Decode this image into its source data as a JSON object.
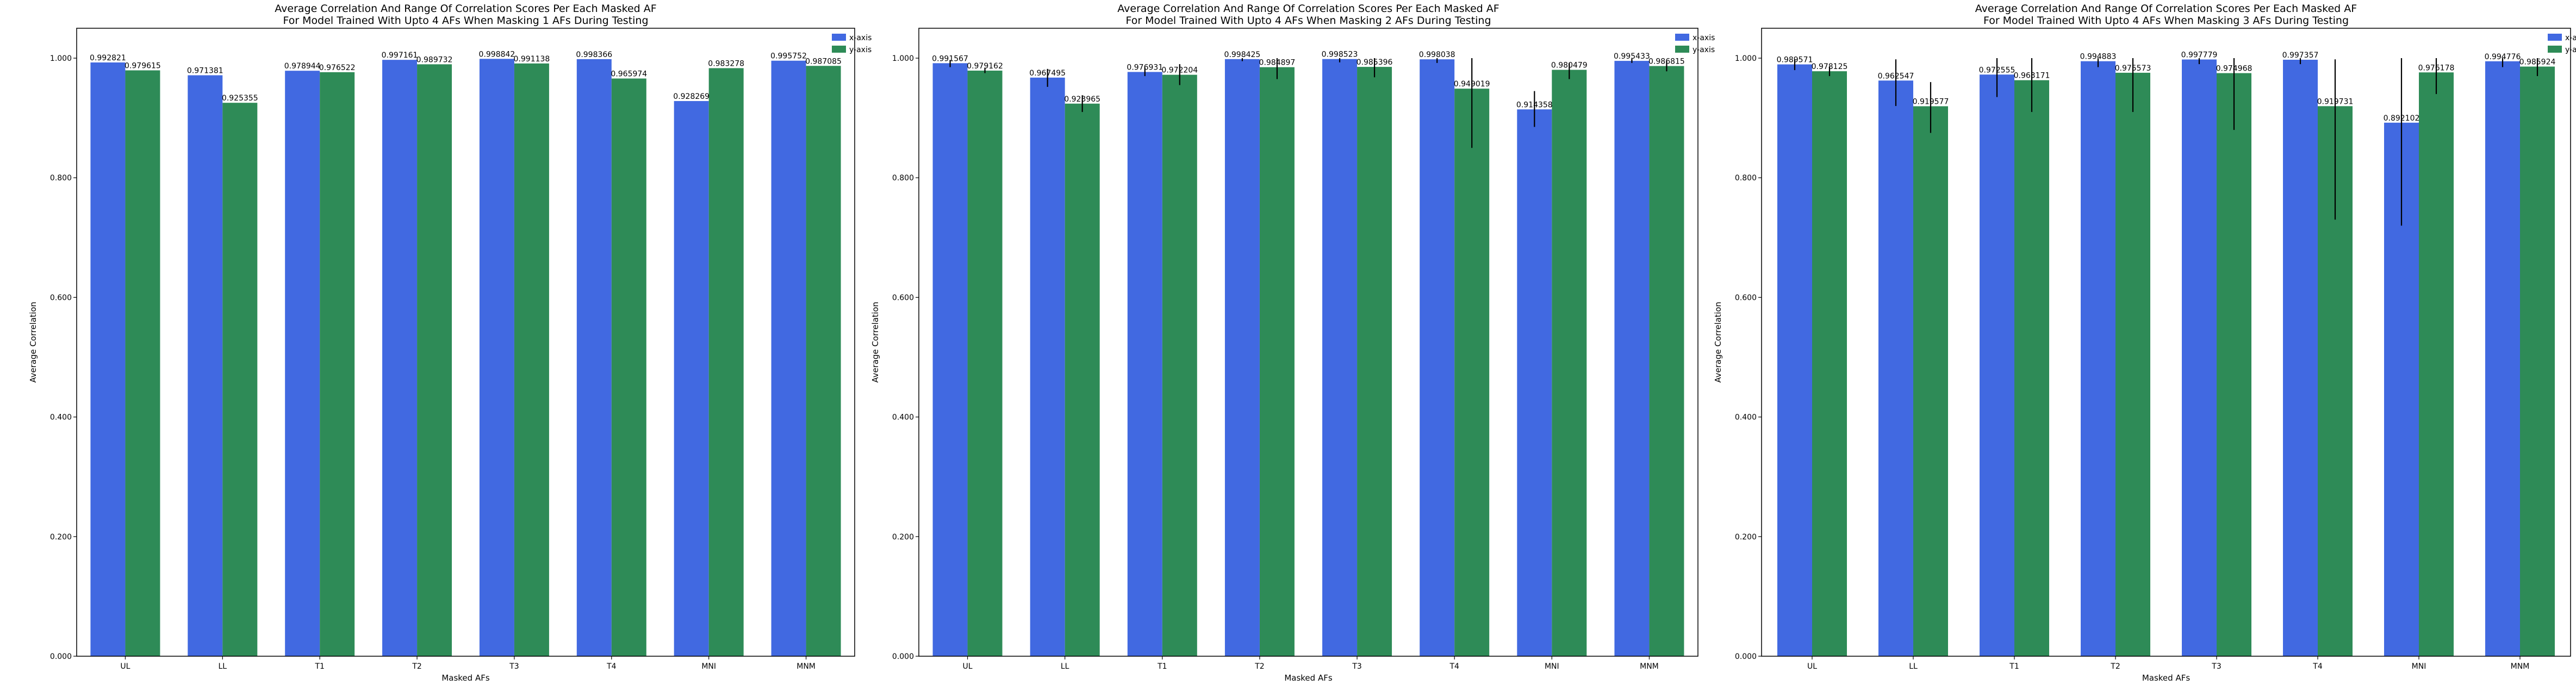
{
  "colors": {
    "x_axis": "#4169E1",
    "y_axis": "#2E8B57",
    "error_bar": "#000000"
  },
  "chart_data": [
    {
      "type": "bar",
      "title_line1": "Average Correlation And Range Of Correlation Scores Per Each Masked AF",
      "title_line2": "For Model Trained With Upto 4 AFs When Masking 1 AFs During Testing",
      "xlabel": "Masked AFs",
      "ylabel": "Average Correlation",
      "ylim": [
        0,
        1.05
      ],
      "yticks": [
        "0.000",
        "0.200",
        "0.400",
        "0.600",
        "0.800",
        "1.000"
      ],
      "categories": [
        "UL",
        "LL",
        "T1",
        "T2",
        "T3",
        "T4",
        "MNI",
        "MNM"
      ],
      "legend_position": "upper right",
      "grid": false,
      "series": [
        {
          "name": "x-axis",
          "values": [
            0.992821,
            0.971381,
            0.978944,
            0.997161,
            0.998842,
            0.998366,
            0.928269,
            0.995752
          ],
          "value_labels": [
            "0.992821",
            "0.971381",
            "0.978944",
            "0.997161",
            "0.998842",
            "0.998366",
            "0.928269",
            "0.995752"
          ],
          "error_ranges": [
            null,
            null,
            null,
            null,
            null,
            null,
            null,
            null
          ]
        },
        {
          "name": "y-axis",
          "values": [
            0.979615,
            0.925355,
            0.976522,
            0.989732,
            0.991138,
            0.965974,
            0.983278,
            0.987085
          ],
          "value_labels": [
            "0.979615",
            "0.925355",
            "0.976522",
            "0.989732",
            "0.991138",
            "0.965974",
            "0.983278",
            "0.987085"
          ],
          "error_ranges": [
            null,
            null,
            null,
            null,
            null,
            null,
            null,
            null
          ]
        }
      ]
    },
    {
      "type": "bar",
      "title_line1": "Average Correlation And Range Of Correlation Scores Per Each Masked AF",
      "title_line2": "For Model Trained With Upto 4 AFs When Masking 2 AFs During Testing",
      "xlabel": "Masked AFs",
      "ylabel": "Average Correlation",
      "ylim": [
        0,
        1.05
      ],
      "yticks": [
        "0.000",
        "0.200",
        "0.400",
        "0.600",
        "0.800",
        "1.000"
      ],
      "categories": [
        "UL",
        "LL",
        "T1",
        "T2",
        "T3",
        "T4",
        "MNI",
        "MNM"
      ],
      "legend_position": "upper right",
      "grid": false,
      "series": [
        {
          "name": "x-axis",
          "values": [
            0.991567,
            0.967495,
            0.976931,
            0.998425,
            0.998523,
            0.998038,
            0.914358,
            0.995433
          ],
          "value_labels": [
            "0.991567",
            "0.967495",
            "0.976931",
            "0.998425",
            "0.998523",
            "0.998038",
            "0.914358",
            "0.995433"
          ],
          "error_ranges": [
            [
              0.985,
              0.997
            ],
            [
              0.952,
              0.982
            ],
            [
              0.97,
              0.984
            ],
            [
              0.995,
              1.0
            ],
            [
              0.993,
              1.0
            ],
            [
              0.992,
              1.0
            ],
            [
              0.885,
              0.945
            ],
            [
              0.992,
              0.999
            ]
          ]
        },
        {
          "name": "y-axis",
          "values": [
            0.979162,
            0.923965,
            0.972204,
            0.984897,
            0.985396,
            0.949019,
            0.980479,
            0.986815
          ],
          "value_labels": [
            "0.979162",
            "0.923965",
            "0.972204",
            "0.984897",
            "0.985396",
            "0.949019",
            "0.980479",
            "0.986815"
          ],
          "error_ranges": [
            [
              0.975,
              0.984
            ],
            [
              0.91,
              0.938
            ],
            [
              0.955,
              0.99
            ],
            [
              0.965,
              1.0
            ],
            [
              0.968,
              1.0
            ],
            [
              0.85,
              1.0
            ],
            [
              0.965,
              0.992
            ],
            [
              0.978,
              0.995
            ]
          ]
        }
      ]
    },
    {
      "type": "bar",
      "title_line1": "Average Correlation And Range Of Correlation Scores Per Each Masked AF",
      "title_line2": "For Model Trained With Upto 4 AFs When Masking 3 AFs During Testing",
      "xlabel": "Masked AFs",
      "ylabel": "Average Correlation",
      "ylim": [
        0,
        1.05
      ],
      "yticks": [
        "0.000",
        "0.200",
        "0.400",
        "0.600",
        "0.800",
        "1.000"
      ],
      "categories": [
        "UL",
        "LL",
        "T1",
        "T2",
        "T3",
        "T4",
        "MNI",
        "MNM"
      ],
      "legend_position": "upper right",
      "grid": false,
      "series": [
        {
          "name": "x-axis",
          "values": [
            0.989571,
            0.962547,
            0.972555,
            0.994883,
            0.997779,
            0.997357,
            0.892102,
            0.994776
          ],
          "value_labels": [
            "0.989571",
            "0.962547",
            "0.972555",
            "0.994883",
            "0.997779",
            "0.997357",
            "0.892102",
            "0.994776"
          ],
          "error_ranges": [
            [
              0.98,
              0.998
            ],
            [
              0.92,
              0.998
            ],
            [
              0.935,
              1.0
            ],
            [
              0.985,
              1.0
            ],
            [
              0.99,
              1.0
            ],
            [
              0.99,
              1.0
            ],
            [
              0.72,
              1.0
            ],
            [
              0.985,
              1.0
            ]
          ]
        },
        {
          "name": "y-axis",
          "values": [
            0.978125,
            0.919577,
            0.963171,
            0.975573,
            0.974968,
            0.919731,
            0.976178,
            0.985924
          ],
          "value_labels": [
            "0.978125",
            "0.919577",
            "0.963171",
            "0.975573",
            "0.974968",
            "0.919731",
            "0.976178",
            "0.985924"
          ],
          "error_ranges": [
            [
              0.97,
              0.986
            ],
            [
              0.875,
              0.96
            ],
            [
              0.91,
              1.0
            ],
            [
              0.91,
              1.0
            ],
            [
              0.88,
              1.0
            ],
            [
              0.73,
              0.998
            ],
            [
              0.94,
              1.0
            ],
            [
              0.97,
              1.0
            ]
          ]
        }
      ]
    }
  ]
}
